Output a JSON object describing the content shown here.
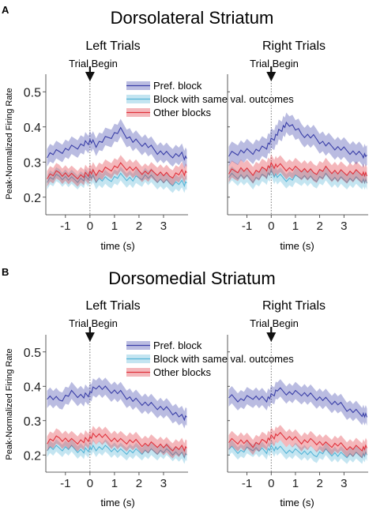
{
  "panels": [
    {
      "letter": "A",
      "title": "Dorsolateral Striatum",
      "ylabel": "Peak-Normalized Firing Rate",
      "legend": [
        "Pref. block",
        "Block with same val. outcomes",
        "Other blocks"
      ],
      "colors": {
        "pref": "#3a3fa8",
        "same": "#55b4d6",
        "other": "#e0323c"
      },
      "charts": [
        {
          "subtitle": "Left Trials",
          "event_label": "Trial Begin",
          "xlabel": "time (s)",
          "xlim": [
            -1.8,
            4.0
          ],
          "ylim": [
            0.15,
            0.55
          ],
          "xticks": [
            -1,
            0,
            1,
            2,
            3
          ],
          "yticks": [
            0.2,
            0.3,
            0.4,
            0.5
          ],
          "series": [
            {
              "name": "Pref. block",
              "key": "pref",
              "x": [
                -1.75,
                -1.25,
                -0.75,
                -0.25,
                0.0,
                0.25,
                0.75,
                1.25,
                1.75,
                2.25,
                2.75,
                3.25,
                3.75,
                3.95
              ],
              "y": [
                0.32,
                0.33,
                0.34,
                0.35,
                0.36,
                0.35,
                0.37,
                0.39,
                0.36,
                0.35,
                0.33,
                0.32,
                0.32,
                0.31
              ],
              "err": 0.025
            },
            {
              "name": "Block with same val. outcomes",
              "key": "same",
              "x": [
                -1.75,
                -1.25,
                -0.75,
                -0.25,
                0.0,
                0.25,
                0.75,
                1.25,
                1.75,
                2.25,
                2.75,
                3.25,
                3.75,
                3.95
              ],
              "y": [
                0.25,
                0.26,
                0.25,
                0.25,
                0.26,
                0.25,
                0.25,
                0.26,
                0.25,
                0.26,
                0.25,
                0.24,
                0.24,
                0.24
              ],
              "err": 0.02
            },
            {
              "name": "Other blocks",
              "key": "other",
              "x": [
                -1.75,
                -1.25,
                -0.75,
                -0.25,
                0.0,
                0.25,
                0.75,
                1.25,
                1.75,
                2.25,
                2.75,
                3.25,
                3.75,
                3.95
              ],
              "y": [
                0.26,
                0.27,
                0.26,
                0.26,
                0.27,
                0.27,
                0.28,
                0.29,
                0.28,
                0.27,
                0.27,
                0.26,
                0.27,
                0.27
              ],
              "err": 0.022
            }
          ]
        },
        {
          "subtitle": "Right Trials",
          "event_label": "Trial Begin",
          "xlabel": "time (s)",
          "xlim": [
            -1.8,
            4.0
          ],
          "ylim": [
            0.15,
            0.55
          ],
          "xticks": [
            -1,
            0,
            1,
            2,
            3
          ],
          "yticks": [
            0.2,
            0.3,
            0.4,
            0.5
          ],
          "series": [
            {
              "name": "Pref. block",
              "key": "pref",
              "x": [
                -1.75,
                -1.25,
                -0.75,
                -0.25,
                0.0,
                0.25,
                0.5,
                0.75,
                1.25,
                1.75,
                2.25,
                2.75,
                3.25,
                3.75,
                3.95
              ],
              "y": [
                0.32,
                0.33,
                0.33,
                0.34,
                0.36,
                0.38,
                0.4,
                0.41,
                0.38,
                0.37,
                0.35,
                0.34,
                0.33,
                0.32,
                0.32
              ],
              "err": 0.028
            },
            {
              "name": "Block with same val. outcomes",
              "key": "same",
              "x": [
                -1.75,
                -1.25,
                -0.75,
                -0.25,
                0.0,
                0.25,
                0.75,
                1.25,
                1.75,
                2.25,
                2.75,
                3.25,
                3.75,
                3.95
              ],
              "y": [
                0.26,
                0.26,
                0.25,
                0.26,
                0.27,
                0.26,
                0.25,
                0.26,
                0.25,
                0.26,
                0.25,
                0.25,
                0.25,
                0.24
              ],
              "err": 0.02
            },
            {
              "name": "Other blocks",
              "key": "other",
              "x": [
                -1.75,
                -1.25,
                -0.75,
                -0.25,
                0.0,
                0.25,
                0.75,
                1.25,
                1.75,
                2.25,
                2.75,
                3.25,
                3.75,
                3.95
              ],
              "y": [
                0.27,
                0.28,
                0.27,
                0.28,
                0.29,
                0.29,
                0.28,
                0.28,
                0.27,
                0.28,
                0.27,
                0.27,
                0.27,
                0.26
              ],
              "err": 0.024
            }
          ]
        }
      ]
    },
    {
      "letter": "B",
      "title": "Dorsomedial Striatum",
      "ylabel": "Peak-Normalized Firing Rate",
      "legend": [
        "Pref. block",
        "Block with same val. outcomes",
        "Other blocks"
      ],
      "colors": {
        "pref": "#3a3fa8",
        "same": "#55b4d6",
        "other": "#e0323c"
      },
      "charts": [
        {
          "subtitle": "Left Trials",
          "event_label": "Trial Begin",
          "xlabel": "time (s)",
          "xlim": [
            -1.8,
            4.0
          ],
          "ylim": [
            0.15,
            0.55
          ],
          "xticks": [
            -1,
            0,
            1,
            2,
            3
          ],
          "yticks": [
            0.2,
            0.3,
            0.4,
            0.5
          ],
          "series": [
            {
              "name": "Pref. block",
              "key": "pref",
              "x": [
                -1.75,
                -1.25,
                -0.75,
                -0.25,
                0.0,
                0.25,
                0.75,
                1.25,
                1.75,
                2.25,
                2.75,
                3.25,
                3.75,
                3.95
              ],
              "y": [
                0.37,
                0.36,
                0.38,
                0.37,
                0.38,
                0.4,
                0.39,
                0.38,
                0.36,
                0.35,
                0.34,
                0.33,
                0.31,
                0.31
              ],
              "err": 0.025
            },
            {
              "name": "Block with same val. outcomes",
              "key": "same",
              "x": [
                -1.75,
                -1.25,
                -0.75,
                -0.25,
                0.0,
                0.25,
                0.75,
                1.25,
                1.75,
                2.25,
                2.75,
                3.25,
                3.75,
                3.95
              ],
              "y": [
                0.22,
                0.22,
                0.22,
                0.21,
                0.22,
                0.22,
                0.22,
                0.21,
                0.21,
                0.21,
                0.21,
                0.21,
                0.2,
                0.2
              ],
              "err": 0.018
            },
            {
              "name": "Other blocks",
              "key": "other",
              "x": [
                -1.75,
                -1.25,
                -0.75,
                -0.25,
                0.0,
                0.25,
                0.75,
                1.25,
                1.75,
                2.25,
                2.75,
                3.25,
                3.75,
                3.95
              ],
              "y": [
                0.24,
                0.25,
                0.24,
                0.24,
                0.25,
                0.26,
                0.25,
                0.24,
                0.24,
                0.23,
                0.23,
                0.22,
                0.22,
                0.22
              ],
              "err": 0.022
            }
          ]
        },
        {
          "subtitle": "Right Trials",
          "event_label": "Trial Begin",
          "xlabel": "time (s)",
          "xlim": [
            -1.8,
            4.0
          ],
          "ylim": [
            0.15,
            0.55
          ],
          "xticks": [
            -1,
            0,
            1,
            2,
            3
          ],
          "yticks": [
            0.2,
            0.3,
            0.4,
            0.5
          ],
          "series": [
            {
              "name": "Pref. block",
              "key": "pref",
              "x": [
                -1.75,
                -1.25,
                -0.75,
                -0.25,
                0.0,
                0.25,
                0.75,
                1.25,
                1.75,
                2.25,
                2.75,
                3.25,
                3.75,
                3.95
              ],
              "y": [
                0.37,
                0.36,
                0.37,
                0.36,
                0.37,
                0.39,
                0.38,
                0.38,
                0.37,
                0.36,
                0.35,
                0.33,
                0.32,
                0.31
              ],
              "err": 0.025
            },
            {
              "name": "Block with same val. outcomes",
              "key": "same",
              "x": [
                -1.75,
                -1.25,
                -0.75,
                -0.25,
                0.0,
                0.25,
                0.75,
                1.25,
                1.75,
                2.25,
                2.75,
                3.25,
                3.75,
                3.95
              ],
              "y": [
                0.22,
                0.21,
                0.22,
                0.21,
                0.22,
                0.22,
                0.21,
                0.21,
                0.2,
                0.21,
                0.2,
                0.2,
                0.2,
                0.2
              ],
              "err": 0.018
            },
            {
              "name": "Other blocks",
              "key": "other",
              "x": [
                -1.75,
                -1.25,
                -0.75,
                -0.25,
                0.0,
                0.25,
                0.75,
                1.25,
                1.75,
                2.25,
                2.75,
                3.25,
                3.75,
                3.95
              ],
              "y": [
                0.24,
                0.24,
                0.23,
                0.24,
                0.25,
                0.26,
                0.25,
                0.24,
                0.24,
                0.23,
                0.23,
                0.22,
                0.22,
                0.22
              ],
              "err": 0.022
            }
          ]
        }
      ]
    }
  ]
}
